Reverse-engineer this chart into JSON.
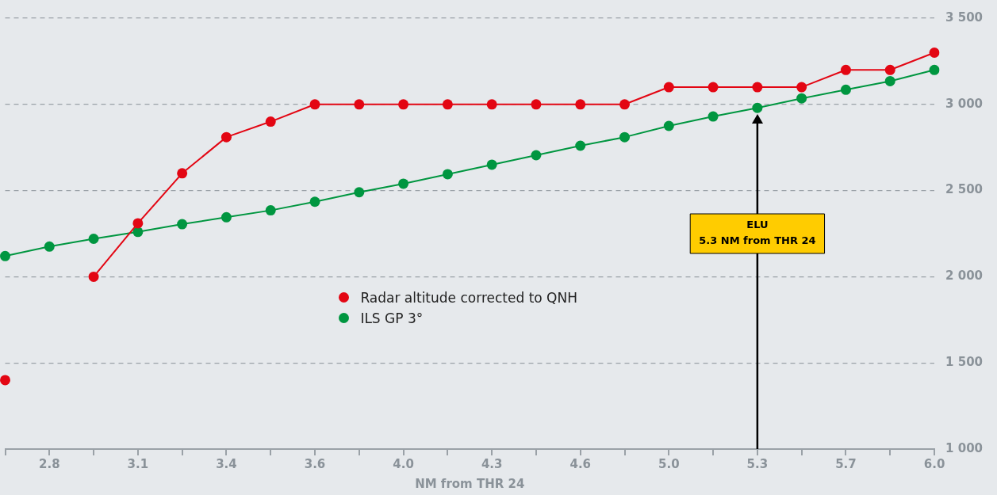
{
  "chart_data": {
    "type": "line",
    "xlabel": "NM from THR 24",
    "categories": [
      null,
      "2.8",
      null,
      "3.1",
      null,
      "3.4",
      null,
      "3.6",
      null,
      "4.0",
      null,
      "4.3",
      null,
      "4.6",
      null,
      "5.0",
      null,
      "5.3",
      null,
      "5.7",
      null,
      "6.0"
    ],
    "series": [
      {
        "name": "Radar altitude corrected to QNH",
        "color": "#e30613",
        "values": [
          1400,
          null,
          2000,
          2310,
          2600,
          2810,
          2900,
          3000,
          3000,
          3000,
          3000,
          3000,
          3000,
          3000,
          3000,
          3100,
          3100,
          3100,
          3100,
          3200,
          3200,
          3300
        ]
      },
      {
        "name": "ILS GP 3°",
        "color": "#009640",
        "values": [
          2120,
          2175,
          2220,
          2260,
          2305,
          2345,
          2385,
          2435,
          2490,
          2540,
          2595,
          2650,
          2705,
          2760,
          2810,
          2875,
          2930,
          2980,
          3035,
          3085,
          3135,
          3200
        ]
      }
    ],
    "ylim": [
      1000,
      3500
    ],
    "yticks": [
      {
        "value": 1000,
        "label": "1 000"
      },
      {
        "value": 1500,
        "label": "1 500"
      },
      {
        "value": 2000,
        "label": "2 000"
      },
      {
        "value": 2500,
        "label": "2 500"
      },
      {
        "value": 3000,
        "label": "3 000"
      },
      {
        "value": 3500,
        "label": "3 500"
      }
    ],
    "grid": "y",
    "legend": "center",
    "marker": "circle",
    "line_style": "solid",
    "ref_lines": [
      {
        "axis": "x",
        "value": "5.3",
        "label": "ELU\n5.3 NM from THR 24",
        "color": "#000000"
      }
    ]
  }
}
